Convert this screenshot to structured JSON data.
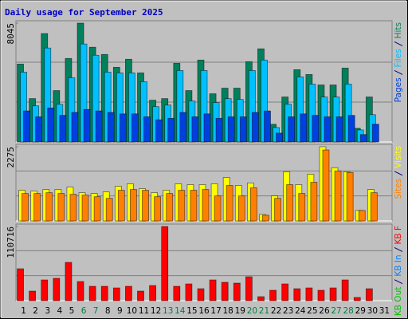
{
  "title": "Daily usage for September 2025",
  "weekend_color": "#008040",
  "weekend": [
    false,
    false,
    false,
    false,
    false,
    true,
    true,
    false,
    false,
    false,
    false,
    false,
    true,
    true,
    false,
    false,
    false,
    false,
    false,
    true,
    true,
    false,
    false,
    false,
    false,
    false,
    true,
    true,
    false,
    false,
    false
  ],
  "chart_data": [
    {
      "type": "bar",
      "ylim": [
        0,
        8045
      ],
      "yticks": [
        8045
      ],
      "series": [
        {
          "name": "Hits",
          "color": "#00805c",
          "values": [
            5273,
            2935,
            7338,
            3479,
            5653,
            8045,
            6414,
            5925,
            5055,
            5599,
            4675,
            2827,
            2935,
            5327,
            3479,
            5545,
            3262,
            3642,
            3642,
            5436,
            6306,
            1196,
            3044,
            4892,
            4566,
            3859,
            3859,
            5001,
            924,
            3044,
            null
          ]
        },
        {
          "name": "Files",
          "color": "#00c0ff",
          "values": [
            4729,
            2446,
            6360,
            2555,
            4349,
            6632,
            5871,
            4729,
            4675,
            4675,
            4077,
            2392,
            2500,
            4838,
            2772,
            4838,
            2664,
            2935,
            2881,
            4838,
            5545,
            978,
            2555,
            4403,
            3914,
            3044,
            3044,
            3914,
            815,
            1848,
            null
          ]
        },
        {
          "name": "Pages",
          "color": "#0040e0",
          "values": [
            2100,
            1700,
            2300,
            1800,
            2000,
            2200,
            2100,
            2000,
            1900,
            1900,
            1700,
            1500,
            1600,
            2000,
            1700,
            1900,
            1600,
            1700,
            1700,
            2000,
            2100,
            600,
            1700,
            1900,
            1800,
            1700,
            1700,
            1800,
            500,
            1200,
            null
          ]
        }
      ]
    },
    {
      "type": "bar",
      "ylim": [
        0,
        2275
      ],
      "yticks": [
        2275
      ],
      "series": [
        {
          "name": "Visits",
          "color": "#ffff00",
          "values": [
            940,
            915,
            964,
            964,
            1039,
            865,
            841,
            890,
            1063,
            1138,
            989,
            865,
            940,
            1138,
            1113,
            1113,
            1138,
            1335,
            1088,
            1162,
            198,
            767,
            1508,
            1113,
            1434,
            2275,
            1632,
            1508,
            321,
            964,
            null
          ]
        },
        {
          "name": "Sites",
          "color": "#ff8000",
          "values": [
            841,
            841,
            865,
            841,
            816,
            791,
            742,
            692,
            940,
            964,
            940,
            742,
            841,
            940,
            940,
            964,
            767,
            1088,
            767,
            1014,
            173,
            692,
            1113,
            841,
            1187,
            2176,
            1533,
            1484,
            321,
            865,
            null
          ]
        }
      ]
    },
    {
      "type": "bar",
      "ylim": [
        0,
        110716
      ],
      "yticks": [
        110716
      ],
      "categories": [
        "1",
        "2",
        "3",
        "4",
        "5",
        "6",
        "7",
        "8",
        "9",
        "10",
        "11",
        "12",
        "13",
        "14",
        "15",
        "16",
        "17",
        "18",
        "19",
        "20",
        "21",
        "22",
        "23",
        "24",
        "25",
        "26",
        "27",
        "28",
        "29",
        "30",
        "31"
      ],
      "series": [
        {
          "name": "KB F",
          "color": "#ff0000",
          "values": [
            47620,
            14286,
            30953,
            33334,
            57144,
            28572,
            21429,
            21429,
            19048,
            21429,
            14286,
            22619,
            110716,
            21429,
            25000,
            17857,
            30953,
            27381,
            26191,
            35715,
            5952,
            15476,
            25000,
            17857,
            19048,
            15476,
            19048,
            30953,
            4762,
            17857,
            null
          ]
        },
        {
          "name": "KB In",
          "color": "#0080ff",
          "values": [
            0,
            0,
            0,
            0,
            0,
            0,
            0,
            0,
            0,
            0,
            0,
            0,
            0,
            0,
            0,
            0,
            0,
            0,
            0,
            0,
            0,
            0,
            0,
            0,
            0,
            0,
            0,
            0,
            0,
            0,
            null
          ]
        },
        {
          "name": "KB Out",
          "color": "#00c000",
          "values": [
            0,
            0,
            0,
            0,
            0,
            0,
            0,
            0,
            0,
            0,
            0,
            0,
            0,
            0,
            0,
            0,
            0,
            0,
            0,
            0,
            0,
            0,
            0,
            0,
            0,
            0,
            0,
            0,
            0,
            0,
            null
          ]
        }
      ]
    }
  ]
}
